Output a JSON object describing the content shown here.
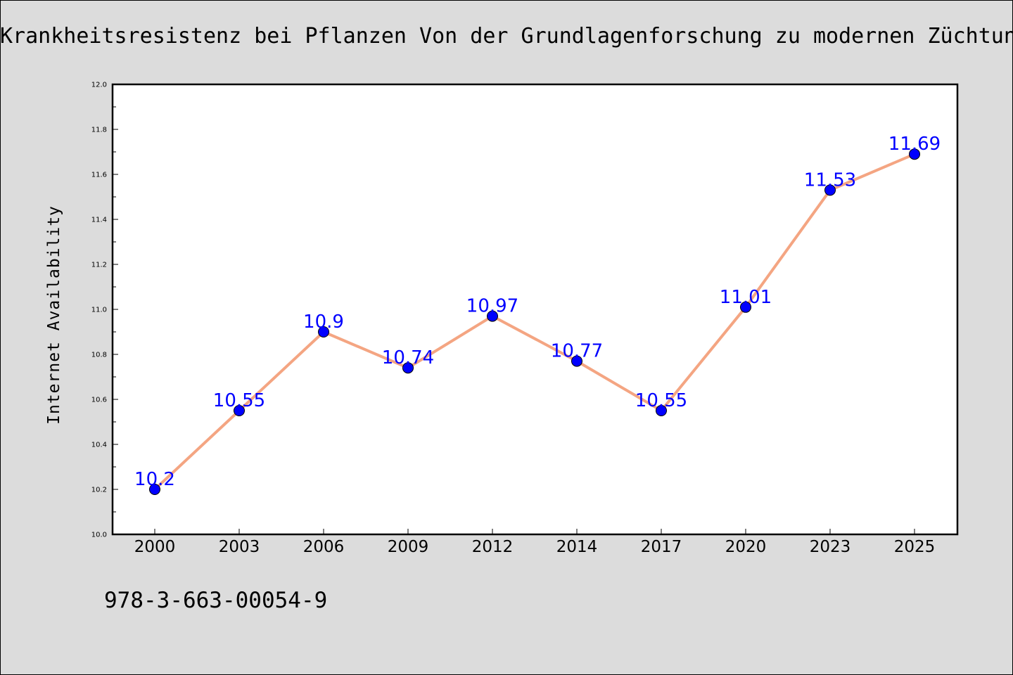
{
  "page": {
    "isbn": "978-3-663-00054-9"
  },
  "colors": {
    "background": "#dcdcdc",
    "plot_background": "#ffffff",
    "line": "#f4a582",
    "marker": "#0000ff",
    "data_label": "#0000ff"
  },
  "chart_data": {
    "type": "line",
    "title": "Krankheitsresistenz bei Pflanzen Von der Grundlagenforschung zu modernen Züchtungsmethoden",
    "xlabel": "",
    "ylabel": "Internet Availability",
    "categories": [
      "2000",
      "2003",
      "2006",
      "2009",
      "2012",
      "2014",
      "2017",
      "2020",
      "2023",
      "2025"
    ],
    "values": [
      10.2,
      10.55,
      10.9,
      10.74,
      10.97,
      10.77,
      10.55,
      11.01,
      11.53,
      11.69
    ],
    "data_labels": [
      "10.2",
      "10.55",
      "10.9",
      "10.74",
      "10.97",
      "10.77",
      "10.55",
      "11.01",
      "11.53",
      "11.69"
    ],
    "ylim": [
      10.0,
      12.0
    ],
    "yticks": [
      "10.0",
      "10.2",
      "10.4",
      "10.6",
      "10.8",
      "11.0",
      "11.2",
      "11.4",
      "11.6",
      "11.8",
      "12.0"
    ],
    "grid": false,
    "legend": "none"
  }
}
